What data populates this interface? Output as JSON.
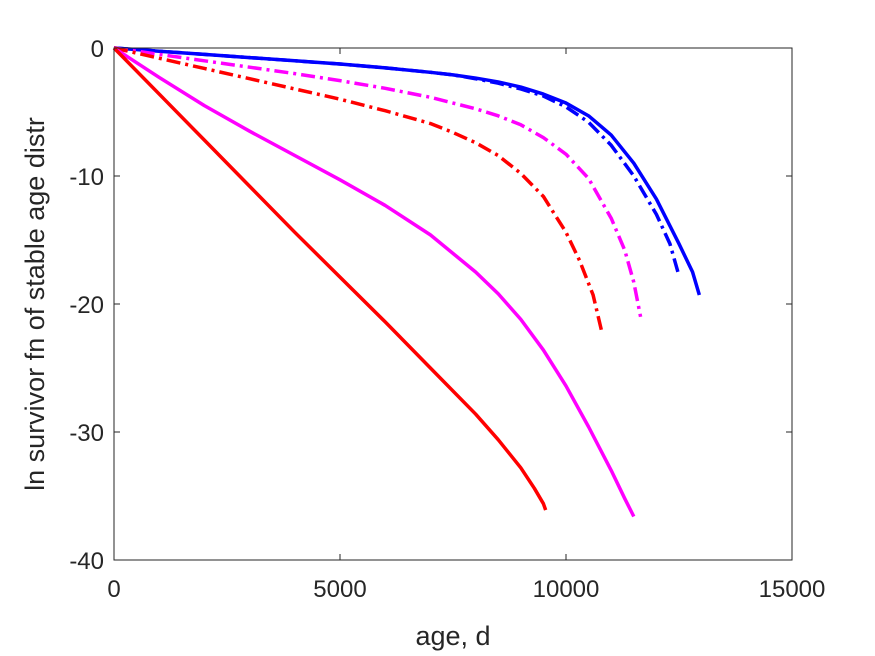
{
  "chart_data": {
    "type": "line",
    "title": "",
    "xlabel": "age, d",
    "ylabel": "ln survivor fn of stable age distr",
    "xlim": [
      0,
      15000
    ],
    "ylim": [
      -40,
      0
    ],
    "xticks": [
      0,
      5000,
      10000,
      15000
    ],
    "yticks": [
      0,
      -10,
      -20,
      -30,
      -40
    ],
    "xtick_labels": [
      "0",
      "5000",
      "10000",
      "15000"
    ],
    "ytick_labels": [
      "0",
      "-10",
      "-20",
      "-30",
      "-40"
    ],
    "grid": false,
    "legend": "none",
    "series": [
      {
        "color": "#0000ff",
        "style": "solid",
        "x": [
          0,
          1000,
          2000,
          3000,
          4000,
          5000,
          6000,
          7000,
          7500,
          8000,
          8500,
          9000,
          9500,
          10000,
          10500,
          11000,
          11500,
          12000,
          12500,
          12800,
          12950
        ],
        "y": [
          0,
          -0.25,
          -0.5,
          -0.75,
          -1.0,
          -1.25,
          -1.55,
          -1.9,
          -2.1,
          -2.35,
          -2.65,
          -3.05,
          -3.6,
          -4.3,
          -5.3,
          -6.8,
          -9.0,
          -11.8,
          -15.3,
          -17.5,
          -19.3
        ]
      },
      {
        "color": "#0000ff",
        "style": "dashdot",
        "x": [
          0,
          1000,
          2000,
          3000,
          4000,
          5000,
          6000,
          7000,
          7500,
          8000,
          8500,
          9000,
          9500,
          10000,
          10500,
          11000,
          11500,
          12000,
          12300,
          12500
        ],
        "y": [
          0,
          -0.25,
          -0.5,
          -0.75,
          -1.0,
          -1.25,
          -1.55,
          -1.9,
          -2.1,
          -2.4,
          -2.75,
          -3.2,
          -3.75,
          -4.6,
          -5.8,
          -7.6,
          -10.0,
          -13.0,
          -15.3,
          -17.8
        ]
      },
      {
        "color": "#ff00ff",
        "style": "dashdot",
        "x": [
          0,
          1000,
          2000,
          3000,
          4000,
          5000,
          6000,
          7000,
          8000,
          8500,
          9000,
          9500,
          10000,
          10500,
          11000,
          11300,
          11500,
          11650
        ],
        "y": [
          0,
          -0.5,
          -1.0,
          -1.5,
          -2.0,
          -2.55,
          -3.15,
          -3.85,
          -4.75,
          -5.3,
          -6.0,
          -7.0,
          -8.3,
          -10.2,
          -13.3,
          -15.8,
          -18.3,
          -21.0
        ]
      },
      {
        "color": "#ff0000",
        "style": "dashdot",
        "x": [
          0,
          1000,
          2000,
          3000,
          4000,
          5000,
          6000,
          7000,
          7500,
          8000,
          8500,
          9000,
          9500,
          10000,
          10300,
          10600,
          10800
        ],
        "y": [
          0,
          -0.8,
          -1.6,
          -2.4,
          -3.2,
          -4.0,
          -4.9,
          -5.9,
          -6.6,
          -7.4,
          -8.4,
          -9.8,
          -11.6,
          -14.4,
          -16.6,
          -19.3,
          -22.3
        ]
      },
      {
        "color": "#ff00ff",
        "style": "solid",
        "x": [
          0,
          1000,
          2000,
          3000,
          4000,
          5000,
          6000,
          7000,
          8000,
          8500,
          9000,
          9500,
          10000,
          10500,
          11000,
          11300,
          11500
        ],
        "y": [
          0,
          -2.3,
          -4.5,
          -6.5,
          -8.4,
          -10.3,
          -12.3,
          -14.6,
          -17.5,
          -19.2,
          -21.2,
          -23.6,
          -26.4,
          -29.6,
          -33.0,
          -35.2,
          -36.6
        ]
      },
      {
        "color": "#ff0000",
        "style": "solid",
        "x": [
          0,
          1000,
          2000,
          3000,
          4000,
          5000,
          6000,
          7000,
          8000,
          8500,
          9000,
          9300,
          9500,
          9550
        ],
        "y": [
          0,
          -3.6,
          -7.2,
          -10.8,
          -14.4,
          -17.9,
          -21.4,
          -25.0,
          -28.6,
          -30.6,
          -32.8,
          -34.4,
          -35.6,
          -36.1
        ]
      }
    ]
  }
}
